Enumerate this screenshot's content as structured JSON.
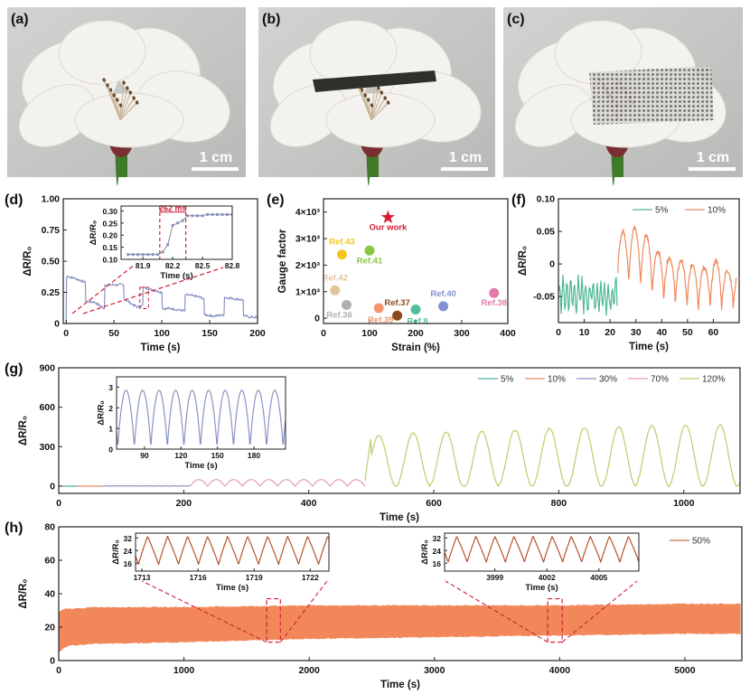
{
  "photos": [
    {
      "label": "(a)",
      "scale_bar": "1 cm",
      "sensor": "none"
    },
    {
      "label": "(b)",
      "scale_bar": "1 cm",
      "sensor": "dark strip"
    },
    {
      "label": "(c)",
      "scale_bar": "1 cm",
      "sensor": "mesh"
    }
  ],
  "colors": {
    "photo_bg": "#c9c9c7",
    "petal": "#f4f2ee",
    "stem": "#3f7a2a",
    "red_annot": "#d0203a"
  },
  "chart_data": [
    {
      "id": "d",
      "panel_label": "(d)",
      "type": "line",
      "xlabel": "Time (s)",
      "ylabel": "ΔR/R₀",
      "xlim": [
        -3,
        200
      ],
      "ylim": [
        0,
        1.0
      ],
      "xticks": [
        0,
        50,
        100,
        150,
        200
      ],
      "xtick_labels": [
        "0",
        "50",
        "100",
        "150",
        "200"
      ],
      "yticks": [
        0,
        0.25,
        0.5,
        0.75,
        1.0
      ],
      "ytick_labels": [
        "0",
        "0.25",
        "0.50",
        "0.75",
        "1.00"
      ],
      "series": [
        {
          "color": "#8a93c4",
          "x": [
            0,
            0.5,
            1,
            10,
            20,
            20.5,
            30,
            40,
            40.5,
            50,
            60,
            60.5,
            70,
            75,
            78,
            80,
            80.5,
            90,
            100,
            100.5,
            110,
            124,
            124.5,
            135,
            144,
            144.5,
            155,
            165,
            165.5,
            175,
            185,
            185.5,
            195,
            200
          ],
          "y": [
            0,
            0.36,
            0.38,
            0.36,
            0.33,
            0.18,
            0.17,
            0.12,
            0.31,
            0.31,
            0.31,
            0.2,
            0.15,
            0.13,
            0.14,
            0.15,
            0.29,
            0.27,
            0.25,
            0.12,
            0.12,
            0.1,
            0.23,
            0.22,
            0.2,
            0.07,
            0.06,
            0.07,
            0.21,
            0.2,
            0.19,
            0.06,
            0.05,
            0.05
          ]
        }
      ]
    },
    {
      "id": "d_inset",
      "type": "line",
      "xlabel": "Time (s)",
      "ylabel": "ΔR/R₀",
      "xlim": [
        81.68,
        82.8
      ],
      "ylim": [
        0.1,
        0.32
      ],
      "xticks": [
        81.9,
        82.2,
        82.5,
        82.8
      ],
      "xtick_labels": [
        "81.9",
        "82.2",
        "82.5",
        "82.8"
      ],
      "yticks": [
        0.1,
        0.15,
        0.2,
        0.25,
        0.3
      ],
      "ytick_labels": [
        "0.10",
        "0.15",
        "0.20",
        "0.25",
        "0.30"
      ],
      "annotation": "262 ms",
      "annotation_range": [
        82.07,
        82.332
      ],
      "series": [
        {
          "color": "#8a93c4",
          "markers": true,
          "x": [
            81.75,
            81.8,
            81.85,
            81.9,
            81.95,
            82.0,
            82.05,
            82.1,
            82.15,
            82.2,
            82.25,
            82.3,
            82.35,
            82.4,
            82.45,
            82.5,
            82.55,
            82.6,
            82.65,
            82.7,
            82.75,
            82.8
          ],
          "y": [
            0.12,
            0.12,
            0.12,
            0.12,
            0.12,
            0.12,
            0.12,
            0.13,
            0.16,
            0.24,
            0.25,
            0.26,
            0.28,
            0.28,
            0.28,
            0.28,
            0.285,
            0.285,
            0.285,
            0.285,
            0.285,
            0.285
          ]
        }
      ]
    },
    {
      "id": "e",
      "panel_label": "(e)",
      "type": "scatter",
      "xlabel": "Strain (%)",
      "ylabel": "Gauge factor",
      "xlim": [
        0,
        400
      ],
      "ylim": [
        -200,
        4500
      ],
      "xticks": [
        0,
        100,
        200,
        300,
        400
      ],
      "xtick_labels": [
        "0",
        "100",
        "200",
        "300",
        "400"
      ],
      "yticks": [
        0,
        1000,
        2000,
        3000,
        4000
      ],
      "ytick_labels": [
        "0",
        "1×10³",
        "2×10³",
        "3×10³",
        "4×10³"
      ],
      "points": [
        {
          "name": "Our work",
          "x": 140,
          "y": 3800,
          "color": "#d71a2f",
          "marker": "star"
        },
        {
          "name": "Ref.43",
          "x": 40,
          "y": 2400,
          "color": "#f2c81e"
        },
        {
          "name": "Ref.41",
          "x": 100,
          "y": 2550,
          "color": "#8cc63f"
        },
        {
          "name": "Ref.42",
          "x": 25,
          "y": 1050,
          "color": "#e2c49a"
        },
        {
          "name": "Ref.36",
          "x": 50,
          "y": 500,
          "color": "#b0b0b0"
        },
        {
          "name": "Ref.39",
          "x": 120,
          "y": 380,
          "color": "#f2956c"
        },
        {
          "name": "Ref.37",
          "x": 160,
          "y": 100,
          "color": "#8b4a1c"
        },
        {
          "name": "Ref.8",
          "x": 200,
          "y": 330,
          "color": "#52c09a"
        },
        {
          "name": "Ref.40",
          "x": 260,
          "y": 450,
          "color": "#8391d0"
        },
        {
          "name": "Ref.38",
          "x": 370,
          "y": 950,
          "color": "#e27aa8"
        }
      ]
    },
    {
      "id": "f",
      "panel_label": "(f)",
      "type": "line",
      "xlabel": "Time (s)",
      "ylabel": "ΔR/R₀",
      "xlim": [
        0,
        70
      ],
      "ylim": [
        -0.09,
        0.1
      ],
      "xticks": [
        0,
        10,
        20,
        30,
        40,
        50,
        60
      ],
      "xtick_labels": [
        "0",
        "10",
        "20",
        "30",
        "40",
        "50",
        "60"
      ],
      "yticks": [
        -0.05,
        0,
        0.05,
        0.1
      ],
      "ytick_labels": [
        "-0.05",
        "0",
        "0.05",
        "0.10"
      ],
      "legend": "top-right",
      "series": [
        {
          "name": "5%",
          "color": "#4fb892",
          "t_range": [
            0,
            23
          ],
          "y_range": [
            -0.08,
            -0.015
          ]
        },
        {
          "name": "10%",
          "color": "#ee8a5e",
          "t_range": [
            23,
            69
          ],
          "peak_times": [
            25,
            29.5,
            34,
            38.5,
            43,
            47.5,
            52,
            56.5,
            61,
            65.5
          ],
          "peaks": [
            0.05,
            0.055,
            0.045,
            0.02,
            0.01,
            0.005,
            0.0,
            -0.005,
            0.005,
            -0.01
          ],
          "troughs": [
            -0.035,
            -0.03,
            -0.045,
            -0.055,
            -0.06,
            -0.065,
            -0.075,
            -0.07,
            -0.075,
            -0.07
          ]
        }
      ]
    },
    {
      "id": "g",
      "panel_label": "(g)",
      "type": "line",
      "xlabel": "Time (s)",
      "ylabel": "ΔR/R₀",
      "xlim": [
        0,
        1090
      ],
      "ylim": [
        -55,
        900
      ],
      "xticks": [
        0,
        200,
        400,
        600,
        800,
        1000
      ],
      "xtick_labels": [
        "0",
        "200",
        "400",
        "600",
        "800",
        "1000"
      ],
      "yticks": [
        0,
        300,
        600,
        900
      ],
      "ytick_labels": [
        "0",
        "300",
        "600",
        "900"
      ],
      "legend": "top-right",
      "series": [
        {
          "name": "5%",
          "color": "#4fb0a0",
          "t_range": [
            0,
            30
          ],
          "amplitude": 0.1
        },
        {
          "name": "10%",
          "color": "#ee8a5e",
          "t_range": [
            30,
            70
          ],
          "amplitude": 0.3
        },
        {
          "name": "30%",
          "color": "#8a93c4",
          "t_range": [
            70,
            210
          ],
          "amplitude": 2.9,
          "period_s": 13.5
        },
        {
          "name": "70%",
          "color": "#e89ab8",
          "t_range": [
            210,
            490
          ],
          "amplitude": 50,
          "period_s": 28
        },
        {
          "name": "120%",
          "color": "#b7cf6a",
          "t_range": [
            490,
            1090
          ],
          "peak_times": [
            512,
            567,
            620,
            677,
            730,
            785,
            841,
            896,
            949,
            1003,
            1058
          ],
          "peaks": [
            385,
            405,
            412,
            419,
            426,
            440,
            446,
            453,
            460,
            467,
            467
          ]
        }
      ]
    },
    {
      "id": "g_inset",
      "type": "line",
      "xlabel": "Time (s)",
      "ylabel": "ΔR/R₀",
      "xlim": [
        67,
        206
      ],
      "ylim": [
        0,
        3.5
      ],
      "xticks": [
        90,
        120,
        150,
        180
      ],
      "xtick_labels": [
        "90",
        "120",
        "150",
        "180"
      ],
      "yticks": [
        0,
        1,
        2,
        3
      ],
      "ytick_labels": [
        "0",
        "1",
        "2",
        "3"
      ],
      "series": [
        {
          "name": "30%",
          "color": "#8a93c4",
          "amplitude": 2.85,
          "period_s": 13.6,
          "first_trough_s": 68
        }
      ]
    },
    {
      "id": "h",
      "panel_label": "(h)",
      "type": "area",
      "xlabel": "Time (s)",
      "ylabel": "ΔR/R₀",
      "xlim": [
        0,
        5455
      ],
      "ylim": [
        0,
        80
      ],
      "xticks": [
        0,
        1000,
        2000,
        3000,
        4000,
        5000
      ],
      "xtick_labels": [
        "0",
        "1000",
        "2000",
        "3000",
        "4000",
        "5000"
      ],
      "yticks": [
        0,
        20,
        40,
        60,
        80
      ],
      "ytick_labels": [
        "0",
        "20",
        "40",
        "60",
        "80"
      ],
      "legend": "top-right",
      "series": [
        {
          "name": "50%",
          "color": "#f2875a",
          "t": [
            0,
            50,
            100,
            300,
            1000,
            2000,
            3000,
            4000,
            5000,
            5455
          ],
          "lower": [
            5,
            8,
            9,
            10,
            11,
            13,
            14,
            15,
            16,
            16
          ],
          "upper": [
            29,
            31,
            31,
            32,
            32,
            33,
            33,
            33,
            34,
            34
          ]
        }
      ],
      "zoom_windows": [
        [
          1660,
          1770
        ],
        [
          3905,
          4020
        ]
      ]
    },
    {
      "id": "h_inset1",
      "type": "line",
      "xlabel": "Time (s)",
      "ylabel": "ΔR/R₀",
      "xlim": [
        1712.66,
        1723
      ],
      "ylim": [
        11,
        35
      ],
      "xticks": [
        1713,
        1716,
        1719,
        1722
      ],
      "xtick_labels": [
        "1713",
        "1716",
        "1719",
        "1722"
      ],
      "yticks": [
        16,
        24,
        32
      ],
      "ytick_labels": [
        "16",
        "24",
        "32"
      ],
      "series": [
        {
          "name": "50%",
          "color": "#b5532c",
          "min": 15,
          "max": 33,
          "period_s": 1.07,
          "first_peak_s": 1713.3
        }
      ]
    },
    {
      "id": "h_inset2",
      "type": "line",
      "xlabel": "Time (s)",
      "ylabel": "ΔR/R₀",
      "xlim": [
        3996.1,
        4007.3
      ],
      "ylim": [
        11,
        35
      ],
      "xticks": [
        3999,
        4002,
        4005
      ],
      "xtick_labels": [
        "3999",
        "4002",
        "4005"
      ],
      "yticks": [
        16,
        24,
        32
      ],
      "ytick_labels": [
        "16",
        "24",
        "32"
      ],
      "series": [
        {
          "name": "50%",
          "color": "#b5532c",
          "min": 16.5,
          "max": 33,
          "period_s": 1.1,
          "first_peak_s": 3996.8
        }
      ]
    }
  ]
}
